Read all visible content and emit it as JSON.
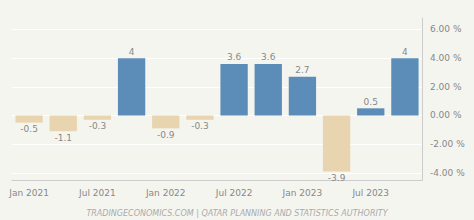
{
  "chart_data": {
    "type": "bar",
    "categories": [
      "Jan 2021",
      null,
      "Jul 2021",
      null,
      "Jan 2022",
      null,
      "Jul 2022",
      null,
      "Jan 2023",
      null,
      "Jul 2023",
      null
    ],
    "values": [
      -0.5,
      -1.1,
      -0.3,
      4.0,
      -0.9,
      -0.3,
      3.6,
      3.6,
      2.7,
      -3.9,
      0.5,
      4.0
    ],
    "colors": [
      "#e8d5b0",
      "#e8d5b0",
      "#e8d5b0",
      "#5b8db8",
      "#e8d5b0",
      "#e8d5b0",
      "#5b8db8",
      "#5b8db8",
      "#5b8db8",
      "#e8d5b0",
      "#5b8db8",
      "#5b8db8"
    ],
    "ylim": [
      -4.5,
      6.8
    ],
    "yticks": [
      {
        "value": -4.0,
        "label": "-4.00 %"
      },
      {
        "value": -2.0,
        "label": "-2.00 %"
      },
      {
        "value": 0.0,
        "label": "0.00 %"
      },
      {
        "value": 2.0,
        "label": "2.00 %"
      },
      {
        "value": 4.0,
        "label": "4.00 %"
      },
      {
        "value": 6.0,
        "label": "6.00 %"
      }
    ],
    "grid": true,
    "data_labels": true,
    "annotations": [
      "TRADINGECONOMICS.COM | QATAR PLANNING AND STATISTICS AUTHORITY"
    ]
  }
}
